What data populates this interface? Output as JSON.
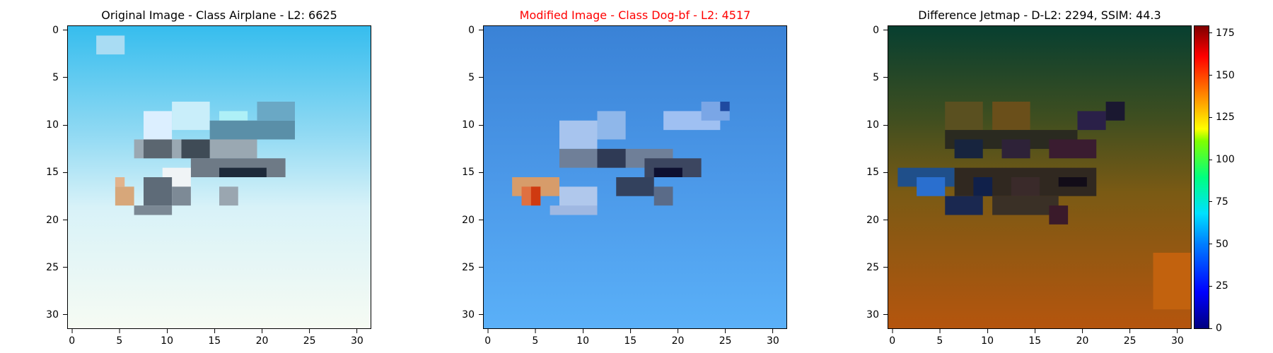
{
  "panels": [
    {
      "title": "Original Image - Class Airplane - L2: 6625",
      "title_color": "#000000"
    },
    {
      "title": "Modified Image - Class Dog-bf - L2: 4517",
      "title_color": "#ff0000"
    },
    {
      "title": "Difference Jetmap - D-L2: 2294, SSIM: 44.3",
      "title_color": "#000000"
    }
  ],
  "axis": {
    "x_ticks": [
      "0",
      "5",
      "10",
      "15",
      "20",
      "25",
      "30"
    ],
    "y_ticks": [
      "0",
      "5",
      "10",
      "15",
      "20",
      "25",
      "30"
    ]
  },
  "colorbar": {
    "ticks": [
      "0",
      "25",
      "50",
      "75",
      "100",
      "125",
      "150",
      "175"
    ],
    "max": 180
  }
}
